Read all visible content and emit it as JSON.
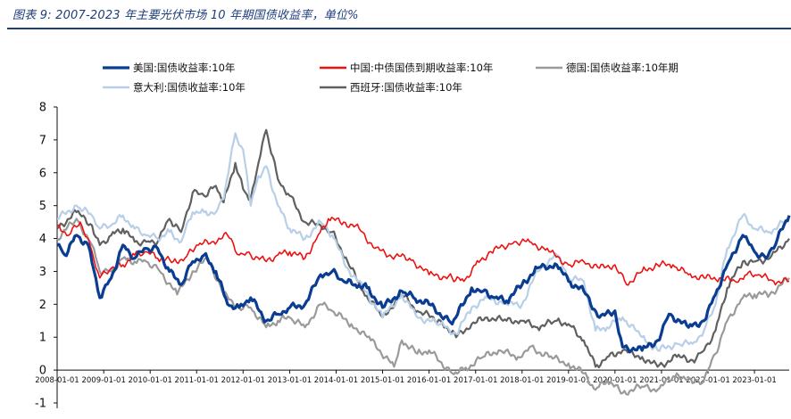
{
  "caption": "图表 9:  2007-2023 年主要光伏市场 10 年期国债收益率，单位%",
  "chart_data": {
    "type": "line",
    "title": "",
    "xlabel": "",
    "ylabel": "",
    "ylim": [
      -1,
      8
    ],
    "yticks": [
      -1,
      0,
      1,
      2,
      3,
      4,
      5,
      6,
      7,
      8
    ],
    "xticks": [
      "2008-01-01",
      "2009-01-01",
      "2010-01-01",
      "2011-01-01",
      "2012-01-01",
      "2013-01-01",
      "2014-01-01",
      "2015-01-01",
      "2016-01-01",
      "2017-01-01",
      "2018-01-01",
      "2019-01-01",
      "2020-01-01",
      "2021-01-01",
      "2022-01-01",
      "2023-01-01"
    ],
    "xlim": [
      "2008-01-01",
      "2023-10-01"
    ],
    "grid": false,
    "legend_position": "top",
    "series": [
      {
        "name": "美国:国债收益率:10年",
        "color": "#0a3d91",
        "width": 3.2,
        "x": [
          "2008-01-01",
          "2008-03-01",
          "2008-06-01",
          "2008-09-01",
          "2008-12-01",
          "2009-03-01",
          "2009-06-01",
          "2009-09-01",
          "2009-12-01",
          "2010-03-01",
          "2010-06-01",
          "2010-09-01",
          "2010-12-01",
          "2011-03-01",
          "2011-06-01",
          "2011-09-01",
          "2011-12-01",
          "2012-03-01",
          "2012-07-01",
          "2012-10-01",
          "2013-01-01",
          "2013-05-01",
          "2013-09-01",
          "2013-12-01",
          "2014-03-01",
          "2014-06-01",
          "2014-09-01",
          "2015-01-01",
          "2015-06-01",
          "2015-09-01",
          "2016-01-01",
          "2016-07-01",
          "2016-12-01",
          "2017-03-01",
          "2017-06-01",
          "2017-09-01",
          "2018-01-01",
          "2018-05-01",
          "2018-10-01",
          "2019-01-01",
          "2019-05-01",
          "2019-09-01",
          "2020-01-01",
          "2020-03-01",
          "2020-08-01",
          "2020-12-01",
          "2021-03-01",
          "2021-08-01",
          "2021-12-01",
          "2022-03-01",
          "2022-06-01",
          "2022-10-01",
          "2023-01-01",
          "2023-04-01",
          "2023-07-01",
          "2023-10-01"
        ],
        "values": [
          3.8,
          3.5,
          4.1,
          3.8,
          2.2,
          2.8,
          3.8,
          3.4,
          3.7,
          3.7,
          3.0,
          2.6,
          3.3,
          3.5,
          3.0,
          2.0,
          1.9,
          2.2,
          1.5,
          1.7,
          1.9,
          2.0,
          2.9,
          3.0,
          2.7,
          2.6,
          2.5,
          1.9,
          2.4,
          2.2,
          2.0,
          1.4,
          2.5,
          2.4,
          2.2,
          2.1,
          2.6,
          3.1,
          3.2,
          2.7,
          2.4,
          1.6,
          1.8,
          0.7,
          0.6,
          0.9,
          1.7,
          1.3,
          1.5,
          2.3,
          3.2,
          4.1,
          3.6,
          3.4,
          4.0,
          4.7
        ]
      },
      {
        "name": "中国:中债国债到期收益率:10年",
        "color": "#ee1111",
        "width": 1.6,
        "x": [
          "2008-01-01",
          "2008-04-01",
          "2008-07-01",
          "2008-10-01",
          "2008-12-01",
          "2009-03-01",
          "2009-06-01",
          "2009-09-01",
          "2009-12-01",
          "2010-03-01",
          "2010-07-01",
          "2010-10-01",
          "2011-01-01",
          "2011-05-01",
          "2011-09-01",
          "2011-12-01",
          "2012-03-01",
          "2012-07-01",
          "2012-10-01",
          "2013-01-01",
          "2013-05-01",
          "2013-08-01",
          "2013-11-01",
          "2014-03-01",
          "2014-07-01",
          "2014-11-01",
          "2015-03-01",
          "2015-08-01",
          "2016-01-01",
          "2016-07-01",
          "2016-10-01",
          "2017-01-01",
          "2017-05-01",
          "2017-11-01",
          "2018-03-01",
          "2018-08-01",
          "2019-01-01",
          "2019-05-01",
          "2019-09-01",
          "2020-01-01",
          "2020-04-01",
          "2020-08-01",
          "2020-12-01",
          "2021-04-01",
          "2021-08-01",
          "2021-12-01",
          "2022-04-01",
          "2022-08-01",
          "2022-11-01",
          "2023-02-01",
          "2023-06-01",
          "2023-10-01"
        ],
        "values": [
          4.4,
          4.1,
          4.5,
          3.6,
          2.8,
          3.1,
          3.2,
          3.5,
          3.6,
          3.4,
          3.3,
          3.4,
          3.8,
          3.9,
          4.1,
          3.5,
          3.5,
          3.3,
          3.5,
          3.6,
          3.4,
          4.0,
          4.6,
          4.5,
          4.3,
          3.7,
          3.5,
          3.4,
          2.9,
          2.8,
          2.7,
          3.2,
          3.6,
          3.9,
          3.9,
          3.6,
          3.2,
          3.3,
          3.1,
          3.2,
          2.6,
          3.0,
          3.2,
          3.2,
          2.9,
          2.8,
          2.8,
          2.7,
          2.9,
          2.9,
          2.7,
          2.7
        ]
      },
      {
        "name": "德国:国债收益率:10年期",
        "color": "#9a9a9a",
        "width": 2.2,
        "x": [
          "2008-01-01",
          "2008-06-01",
          "2008-10-01",
          "2008-12-01",
          "2009-03-01",
          "2009-06-01",
          "2009-09-01",
          "2009-12-01",
          "2010-03-01",
          "2010-08-01",
          "2010-12-01",
          "2011-04-01",
          "2011-08-01",
          "2011-12-01",
          "2012-03-01",
          "2012-07-01",
          "2012-10-01",
          "2013-01-01",
          "2013-05-01",
          "2013-09-01",
          "2013-12-01",
          "2014-05-01",
          "2014-10-01",
          "2015-04-01",
          "2015-06-01",
          "2015-10-01",
          "2016-01-01",
          "2016-07-01",
          "2016-10-01",
          "2017-03-01",
          "2017-07-01",
          "2017-12-01",
          "2018-03-01",
          "2018-08-01",
          "2019-01-01",
          "2019-05-01",
          "2019-08-01",
          "2019-11-01",
          "2020-03-01",
          "2020-08-01",
          "2020-12-01",
          "2021-05-01",
          "2021-09-01",
          "2021-12-01",
          "2022-03-01",
          "2022-06-01",
          "2022-10-01",
          "2023-01-01",
          "2023-05-01",
          "2023-10-01"
        ],
        "values": [
          4.0,
          4.6,
          3.8,
          3.0,
          3.0,
          3.4,
          3.3,
          3.3,
          3.1,
          2.3,
          3.0,
          3.4,
          2.3,
          1.9,
          1.9,
          1.3,
          1.5,
          1.6,
          1.3,
          2.0,
          1.8,
          1.4,
          0.9,
          0.1,
          0.9,
          0.5,
          0.6,
          -0.1,
          0.0,
          0.4,
          0.6,
          0.4,
          0.7,
          0.4,
          0.2,
          -0.1,
          -0.6,
          -0.3,
          -0.7,
          -0.5,
          -0.6,
          -0.1,
          -0.4,
          -0.3,
          0.5,
          1.5,
          2.2,
          2.3,
          2.3,
          2.8
        ]
      },
      {
        "name": "意大利:国债收益率:10年",
        "color": "#b8cfe8",
        "width": 2.2,
        "x": [
          "2008-01-01",
          "2008-06-01",
          "2008-10-01",
          "2008-12-01",
          "2009-03-01",
          "2009-06-01",
          "2009-09-01",
          "2009-12-01",
          "2010-03-01",
          "2010-06-01",
          "2010-09-01",
          "2010-12-01",
          "2011-03-01",
          "2011-06-01",
          "2011-08-01",
          "2011-11-01",
          "2012-01-01",
          "2012-03-01",
          "2012-05-01",
          "2012-07-01",
          "2012-10-01",
          "2013-01-01",
          "2013-05-01",
          "2013-09-01",
          "2013-12-01",
          "2014-04-01",
          "2014-08-01",
          "2015-01-01",
          "2015-06-01",
          "2015-10-01",
          "2016-04-01",
          "2016-08-01",
          "2016-12-01",
          "2017-04-01",
          "2017-09-01",
          "2018-01-01",
          "2018-05-01",
          "2018-10-01",
          "2019-01-01",
          "2019-05-01",
          "2019-08-01",
          "2019-11-01",
          "2020-03-01",
          "2020-08-01",
          "2020-12-01",
          "2021-05-01",
          "2021-09-01",
          "2021-12-01",
          "2022-03-01",
          "2022-06-01",
          "2022-10-01",
          "2023-01-01",
          "2023-05-01",
          "2023-10-01"
        ],
        "values": [
          4.6,
          5.0,
          4.7,
          4.3,
          4.4,
          4.7,
          4.3,
          4.1,
          4.0,
          4.2,
          3.9,
          4.8,
          4.8,
          4.8,
          5.2,
          7.2,
          6.7,
          5.0,
          5.9,
          6.2,
          5.0,
          4.3,
          4.0,
          4.5,
          4.1,
          3.1,
          2.5,
          1.6,
          2.3,
          1.6,
          1.4,
          1.1,
          1.9,
          2.2,
          2.0,
          2.0,
          3.0,
          3.5,
          2.8,
          2.7,
          1.2,
          1.3,
          1.6,
          1.0,
          0.6,
          0.8,
          0.8,
          1.2,
          2.0,
          3.7,
          4.7,
          4.3,
          4.2,
          4.6
        ]
      },
      {
        "name": "西班牙:国债收益率:10年",
        "color": "#606060",
        "width": 2.2,
        "x": [
          "2008-01-01",
          "2008-06-01",
          "2008-10-01",
          "2008-12-01",
          "2009-03-01",
          "2009-06-01",
          "2009-09-01",
          "2009-12-01",
          "2010-03-01",
          "2010-06-01",
          "2010-09-01",
          "2010-12-01",
          "2011-03-01",
          "2011-06-01",
          "2011-08-01",
          "2011-11-01",
          "2012-01-01",
          "2012-03-01",
          "2012-05-01",
          "2012-07-01",
          "2012-10-01",
          "2013-01-01",
          "2013-05-01",
          "2013-09-01",
          "2013-12-01",
          "2014-04-01",
          "2014-08-01",
          "2015-01-01",
          "2015-06-01",
          "2015-10-01",
          "2016-04-01",
          "2016-08-01",
          "2016-12-01",
          "2017-04-01",
          "2017-09-01",
          "2018-01-01",
          "2018-05-01",
          "2018-10-01",
          "2019-01-01",
          "2019-05-01",
          "2019-08-01",
          "2019-11-01",
          "2020-03-01",
          "2020-08-01",
          "2020-12-01",
          "2021-05-01",
          "2021-09-01",
          "2021-12-01",
          "2022-03-01",
          "2022-06-01",
          "2022-10-01",
          "2023-01-01",
          "2023-05-01",
          "2023-10-01"
        ],
        "values": [
          4.3,
          4.8,
          4.4,
          3.8,
          4.1,
          4.3,
          3.9,
          3.9,
          3.9,
          4.6,
          4.2,
          5.4,
          5.3,
          5.6,
          5.1,
          6.3,
          5.5,
          5.2,
          6.3,
          7.3,
          5.8,
          5.3,
          4.5,
          4.4,
          4.2,
          3.3,
          2.4,
          1.6,
          2.3,
          1.8,
          1.5,
          1.0,
          1.4,
          1.6,
          1.5,
          1.5,
          1.3,
          1.5,
          1.4,
          0.9,
          0.1,
          0.4,
          0.6,
          0.4,
          0.1,
          0.4,
          0.3,
          0.6,
          1.2,
          2.5,
          3.3,
          3.3,
          3.4,
          4.0
        ]
      }
    ]
  }
}
